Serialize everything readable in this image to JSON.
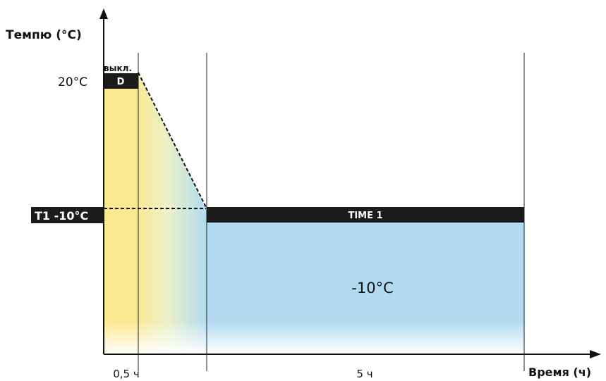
{
  "axes": {
    "y_title": "Темпю (°C)",
    "x_title": "Время (ч)"
  },
  "labels": {
    "temp_high": "20°C",
    "off_label": "выкл.",
    "d_label": "D",
    "t1_label": "T1 -10°C",
    "time1_label": "TIME 1",
    "zone_temp": "-10°C",
    "tick_half_hour": "0,5 ч",
    "tick_five_hours": "5 ч"
  },
  "colors": {
    "warm": "#fbe88f",
    "cold": "#b2dbf1",
    "bar": "#1b1b1b",
    "axis": "#111111"
  }
}
